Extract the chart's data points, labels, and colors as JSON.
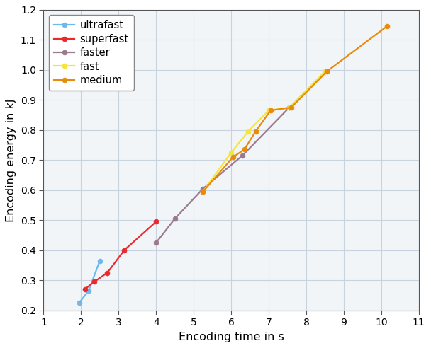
{
  "title": "",
  "xlabel": "Encoding time in s",
  "ylabel": "Encoding energy in kJ",
  "xlim": [
    1,
    11
  ],
  "ylim": [
    0.2,
    1.2
  ],
  "xticks": [
    1,
    2,
    3,
    4,
    5,
    6,
    7,
    8,
    9,
    10,
    11
  ],
  "yticks": [
    0.2,
    0.3,
    0.4,
    0.5,
    0.6,
    0.7,
    0.8,
    0.9,
    1.0,
    1.1,
    1.2
  ],
  "series": [
    {
      "label": "ultrafast",
      "color": "#6db8ed",
      "x": [
        1.95,
        2.2,
        2.5
      ],
      "y": [
        0.225,
        0.265,
        0.365
      ]
    },
    {
      "label": "superfast",
      "color": "#e8292e",
      "x": [
        2.1,
        2.35,
        2.7,
        3.15,
        4.0
      ],
      "y": [
        0.27,
        0.295,
        0.325,
        0.4,
        0.495
      ]
    },
    {
      "label": "faster",
      "color": "#9b7a90",
      "x": [
        4.0,
        4.5,
        5.25,
        6.3,
        7.55
      ],
      "y": [
        0.425,
        0.505,
        0.605,
        0.715,
        0.875
      ]
    },
    {
      "label": "fast",
      "color": "#f5e53a",
      "x": [
        5.25,
        6.0,
        6.45,
        7.0,
        7.55,
        8.5
      ],
      "y": [
        0.595,
        0.725,
        0.795,
        0.865,
        0.875,
        0.995
      ]
    },
    {
      "label": "medium",
      "color": "#e88a0a",
      "x": [
        5.25,
        6.05,
        6.35,
        6.65,
        7.05,
        7.6,
        8.55,
        10.15
      ],
      "y": [
        0.595,
        0.71,
        0.735,
        0.795,
        0.865,
        0.875,
        0.995,
        1.145
      ]
    }
  ],
  "background_color": "#f2f5f8",
  "grid_color": "#c8d3df",
  "legend_fontsize": 10.5,
  "axis_fontsize": 11.5,
  "tick_fontsize": 10,
  "marker": "o",
  "markersize": 5,
  "linewidth": 1.6
}
